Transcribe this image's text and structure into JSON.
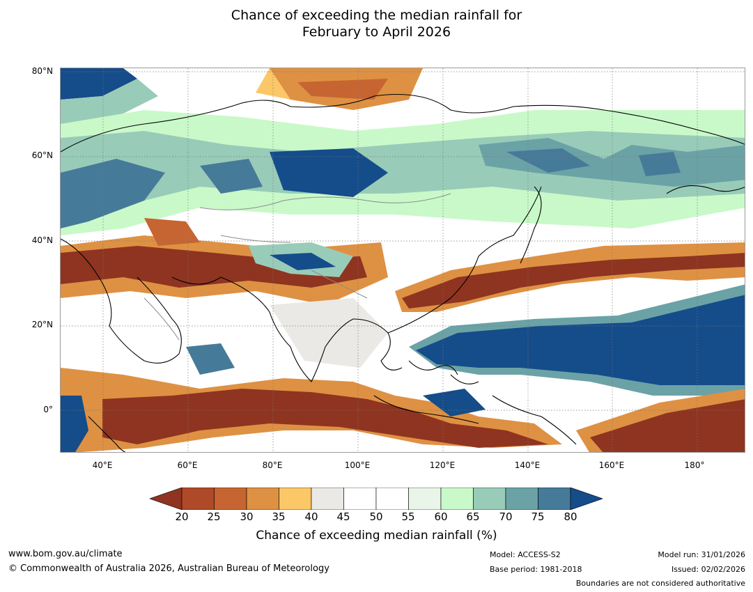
{
  "title": {
    "line1": "Chance of exceeding the median rainfall for",
    "line2": "February to April 2026"
  },
  "map": {
    "lat_labels": [
      "80°N",
      "60°N",
      "40°N",
      "20°N",
      "0°"
    ],
    "lon_labels": [
      "40°E",
      "60°E",
      "80°E",
      "100°E",
      "120°E",
      "140°E",
      "160°E",
      "180°"
    ],
    "extent": {
      "lon_min": 30,
      "lon_max": 191,
      "lat_min": -10,
      "lat_max": 80
    }
  },
  "legend": {
    "ticks": [
      "20",
      "25",
      "30",
      "35",
      "40",
      "45",
      "50",
      "55",
      "60",
      "65",
      "70",
      "75",
      "80"
    ],
    "colors": [
      "#8f3420",
      "#ae4a27",
      "#c76532",
      "#de9143",
      "#fcc767",
      "#ebe9e6",
      "#ffffff",
      "#ffffff",
      "#eaf5ea",
      "#c9f9c9",
      "#98ccb8",
      "#6ba2a6",
      "#467a99",
      "#154c8a"
    ],
    "label": "Chance of exceeding median rainfall (%)"
  },
  "footer": {
    "url": "www.bom.gov.au/climate",
    "copyright": "© Commonwealth of Australia 2026, Australian Bureau of Meteorology",
    "model": "Model: ACCESS-S2",
    "base_period": "Base period: 1981-2018",
    "model_run": "Model run: 31/01/2026",
    "issued": "Issued: 02/02/2026",
    "disclaimer": "Boundaries are not considered authoritative"
  }
}
